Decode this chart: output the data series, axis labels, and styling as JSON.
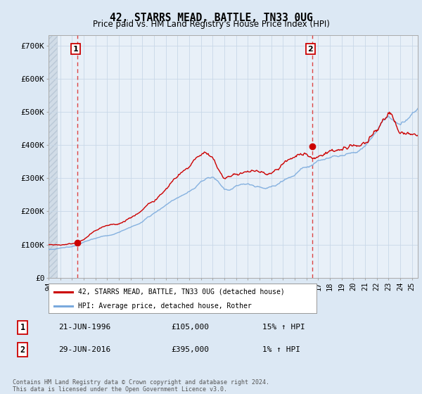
{
  "title": "42, STARRS MEAD, BATTLE, TN33 0UG",
  "subtitle": "Price paid vs. HM Land Registry's House Price Index (HPI)",
  "xlim": [
    1994.0,
    2025.5
  ],
  "ylim": [
    0,
    730000
  ],
  "yticks": [
    0,
    100000,
    200000,
    300000,
    400000,
    500000,
    600000,
    700000
  ],
  "ytick_labels": [
    "£0",
    "£100K",
    "£200K",
    "£300K",
    "£400K",
    "£500K",
    "£600K",
    "£700K"
  ],
  "xticks": [
    1994,
    1995,
    1996,
    1997,
    1998,
    1999,
    2000,
    2001,
    2002,
    2003,
    2004,
    2005,
    2006,
    2007,
    2008,
    2009,
    2010,
    2011,
    2012,
    2013,
    2014,
    2015,
    2016,
    2017,
    2018,
    2019,
    2020,
    2021,
    2022,
    2023,
    2024,
    2025
  ],
  "sale1_x": 1996.47,
  "sale1_y": 105000,
  "sale2_x": 2016.49,
  "sale2_y": 395000,
  "line1_color": "#cc0000",
  "line2_color": "#7aaadd",
  "vline_color": "#dd4444",
  "grid_color": "#c8d8e8",
  "bg_color": "#dce8f4",
  "plot_bg": "#e8f0f8",
  "hatch_color": "#c8d8e8",
  "legend_line1": "42, STARRS MEAD, BATTLE, TN33 0UG (detached house)",
  "legend_line2": "HPI: Average price, detached house, Rother",
  "sale1_date": "21-JUN-1996",
  "sale1_price": "£105,000",
  "sale1_hpi": "15% ↑ HPI",
  "sale2_date": "29-JUN-2016",
  "sale2_price": "£395,000",
  "sale2_hpi": "1% ↑ HPI",
  "footer": "Contains HM Land Registry data © Crown copyright and database right 2024.\nThis data is licensed under the Open Government Licence v3.0."
}
